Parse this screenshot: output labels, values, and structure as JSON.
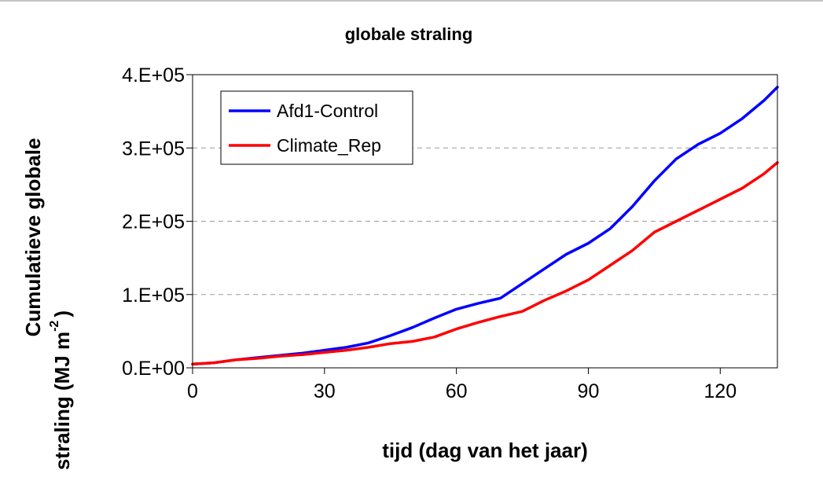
{
  "chart_data": {
    "type": "line",
    "title": "globale straling",
    "xlabel": "tijd (dag van het jaar)",
    "ylabel_line1": "Cumulatieve globale",
    "ylabel_line2": "straling (MJ m",
    "ylabel_superscript": "-2",
    "ylabel_close": ")",
    "xlim": [
      0,
      133
    ],
    "ylim": [
      0,
      400000
    ],
    "x_ticks": [
      0,
      30,
      60,
      90,
      120
    ],
    "x_tick_labels": [
      "0",
      "30",
      "60",
      "90",
      "120"
    ],
    "y_ticks": [
      0,
      100000,
      200000,
      300000,
      400000
    ],
    "y_tick_labels": [
      "0.E+00",
      "1.E+05",
      "2.E+05",
      "3.E+05",
      "4.E+05"
    ],
    "grid": "horizontal-dashed",
    "legend_position": "top-left",
    "series": [
      {
        "name": "Afd1-Control",
        "color": "#0000ff",
        "x": [
          0,
          5,
          10,
          15,
          20,
          25,
          30,
          35,
          40,
          45,
          50,
          55,
          60,
          65,
          70,
          75,
          80,
          85,
          90,
          95,
          100,
          105,
          110,
          115,
          120,
          125,
          130,
          133
        ],
        "y": [
          5000,
          7000,
          11000,
          14000,
          17000,
          20000,
          24000,
          28000,
          34000,
          44000,
          55000,
          68000,
          80000,
          88000,
          95000,
          115000,
          135000,
          155000,
          170000,
          190000,
          220000,
          255000,
          285000,
          305000,
          320000,
          340000,
          365000,
          383000
        ]
      },
      {
        "name": "Climate_Rep",
        "color": "#ff0000",
        "x": [
          0,
          5,
          10,
          15,
          20,
          25,
          30,
          35,
          40,
          45,
          50,
          55,
          60,
          65,
          70,
          75,
          80,
          85,
          90,
          95,
          100,
          105,
          110,
          115,
          120,
          125,
          130,
          133
        ],
        "y": [
          5000,
          7000,
          11000,
          13000,
          16000,
          18000,
          21000,
          24000,
          28000,
          33000,
          36000,
          42000,
          53000,
          62000,
          70000,
          77000,
          92000,
          105000,
          120000,
          140000,
          160000,
          185000,
          200000,
          215000,
          230000,
          245000,
          265000,
          280000
        ]
      }
    ]
  }
}
